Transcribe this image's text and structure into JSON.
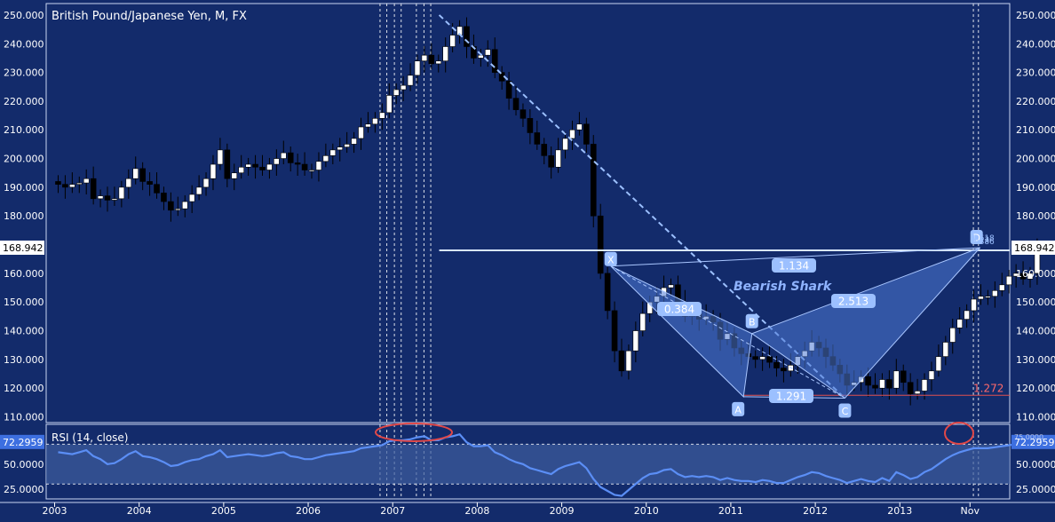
{
  "chart_data": {
    "type": "candlestick",
    "title": "British Pound/Japanese Yen, M, FX",
    "price_axis": {
      "ticks": [
        110,
        120,
        130,
        140,
        150,
        160,
        170,
        180,
        190,
        200,
        210,
        220,
        230,
        240,
        250
      ],
      "tick_labels": [
        "110.000",
        "120.000",
        "130.000",
        "140.000",
        "150.000",
        "160.000",
        "",
        "180.000",
        "190.000",
        "200.000",
        "210.000",
        "220.000",
        "230.000",
        "240.000",
        "250.000"
      ],
      "range": [
        108,
        254
      ],
      "current_price_label": "168.942",
      "current_price": 168.942
    },
    "time_axis": {
      "labels": [
        "2003",
        "2004",
        "2005",
        "2006",
        "2007",
        "2008",
        "2009",
        "2010",
        "2011",
        "2012",
        "2013",
        "Nov"
      ],
      "positions": [
        2003.0,
        2004.0,
        2005.0,
        2006.0,
        2007.0,
        2008.0,
        2009.0,
        2010.0,
        2011.0,
        2012.0,
        2013.0,
        2013.83
      ],
      "range": [
        2002.9,
        2014.3
      ]
    },
    "candles_close": [
      191.0,
      190.0,
      191.0,
      191.5,
      193.0,
      186.0,
      187.0,
      185.5,
      186.0,
      190.0,
      193.0,
      196.5,
      192.0,
      191.0,
      188.0,
      185.0,
      182.0,
      182.5,
      185.0,
      187.5,
      190.0,
      193.0,
      198.0,
      203.0,
      193.0,
      195.0,
      197.0,
      198.0,
      197.0,
      196.0,
      198.0,
      200.0,
      202.0,
      198.5,
      198.0,
      196.0,
      196.0,
      199.0,
      201.0,
      203.0,
      204.0,
      205.0,
      207.0,
      211.0,
      212.0,
      214.0,
      216.0,
      222.0,
      224.0,
      225.5,
      229.0,
      234.0,
      236.0,
      233.0,
      234.0,
      239.0,
      243.0,
      246.0,
      239.0,
      235.0,
      236.0,
      238.0,
      230.0,
      227.0,
      221.0,
      217.0,
      214.0,
      209.0,
      205.0,
      201.0,
      197.0,
      203.0,
      207.0,
      210.0,
      212.0,
      205.0,
      180.0,
      160.0,
      147.0,
      133.0,
      126.0,
      133.0,
      140.0,
      146.0,
      150.0,
      152.0,
      155.0,
      156.0,
      150.0,
      145.0,
      146.0,
      144.0,
      145.0,
      143.0,
      137.0,
      139.0,
      134.0,
      132.0,
      131.0,
      130.0,
      131.0,
      129.0,
      127.0,
      126.0,
      128.0,
      131.0,
      133.0,
      136.0,
      134.0,
      131.0,
      128.0,
      125.0,
      121.0,
      122.0,
      124.0,
      121.0,
      120.0,
      123.0,
      120.0,
      126.0,
      122.0,
      118.0,
      119.0,
      123.0,
      126.0,
      131.0,
      136.0,
      141.0,
      144.0,
      147.0,
      151.0,
      152.0,
      152.0,
      154.0,
      156.0,
      159.0,
      160.0,
      158.0,
      160.0,
      168.94
    ],
    "pattern": {
      "name": "Bearish Shark",
      "points": [
        {
          "label": "X",
          "date": 2009.58,
          "price": 162.5
        },
        {
          "label": "A",
          "date": 2011.15,
          "price": 117.0
        },
        {
          "label": "B",
          "date": 2011.25,
          "price": 139.0
        },
        {
          "label": "C",
          "date": 2012.35,
          "price": 116.5
        },
        {
          "label": "D",
          "date": 2013.95,
          "price": 168.94
        }
      ],
      "ratios": [
        "0.384",
        "1.291",
        "2.513",
        "1.134"
      ],
      "extension_label": "1.272",
      "extension_price": 117.5,
      "d_side_labels": [
        "0.886",
        "1.13",
        "1.618"
      ]
    },
    "annotations": {
      "dashed_vertical_lines_x": [
        2006.85,
        2006.93,
        2007.02,
        2007.1,
        2007.28,
        2007.37,
        2007.45,
        2013.87,
        2013.93
      ],
      "trendline": {
        "from": {
          "date": 2007.55,
          "price": 250
        },
        "to": {
          "date": 2012.35,
          "price": 116.5
        }
      },
      "horizontal_line_price": 168.0
    },
    "rsi": {
      "label": "RSI (14, close)",
      "value_label": "72.2959",
      "value": 72.2959,
      "overlay_label": "75.0000",
      "ticks": [
        25,
        50
      ],
      "tick_labels": [
        "25.0000",
        "50.0000"
      ],
      "range": [
        15,
        90
      ],
      "levels": [
        30,
        70
      ],
      "values": [
        62,
        61,
        60,
        62,
        64,
        58,
        55,
        50,
        51,
        55,
        60,
        63,
        58,
        57,
        55,
        52,
        48,
        49,
        52,
        54,
        55,
        58,
        60,
        64,
        57,
        58,
        59,
        60,
        59,
        58,
        59,
        61,
        62,
        58,
        57,
        55,
        55,
        57,
        59,
        60,
        61,
        62,
        63,
        66,
        67,
        68,
        69,
        73,
        74,
        74,
        75,
        77,
        78,
        74,
        74,
        77,
        78,
        80,
        72,
        68,
        68,
        69,
        62,
        59,
        55,
        52,
        50,
        46,
        44,
        42,
        40,
        45,
        48,
        50,
        52,
        46,
        35,
        27,
        23,
        19,
        18,
        24,
        30,
        36,
        40,
        41,
        44,
        45,
        40,
        37,
        38,
        37,
        38,
        37,
        34,
        36,
        34,
        33,
        33,
        32,
        34,
        33,
        31,
        31,
        34,
        37,
        39,
        42,
        41,
        38,
        36,
        34,
        31,
        33,
        35,
        33,
        32,
        36,
        33,
        42,
        39,
        35,
        37,
        42,
        45,
        50,
        55,
        59,
        62,
        64,
        66,
        66,
        66,
        67,
        68,
        69,
        70,
        68,
        70,
        72.3
      ]
    }
  }
}
